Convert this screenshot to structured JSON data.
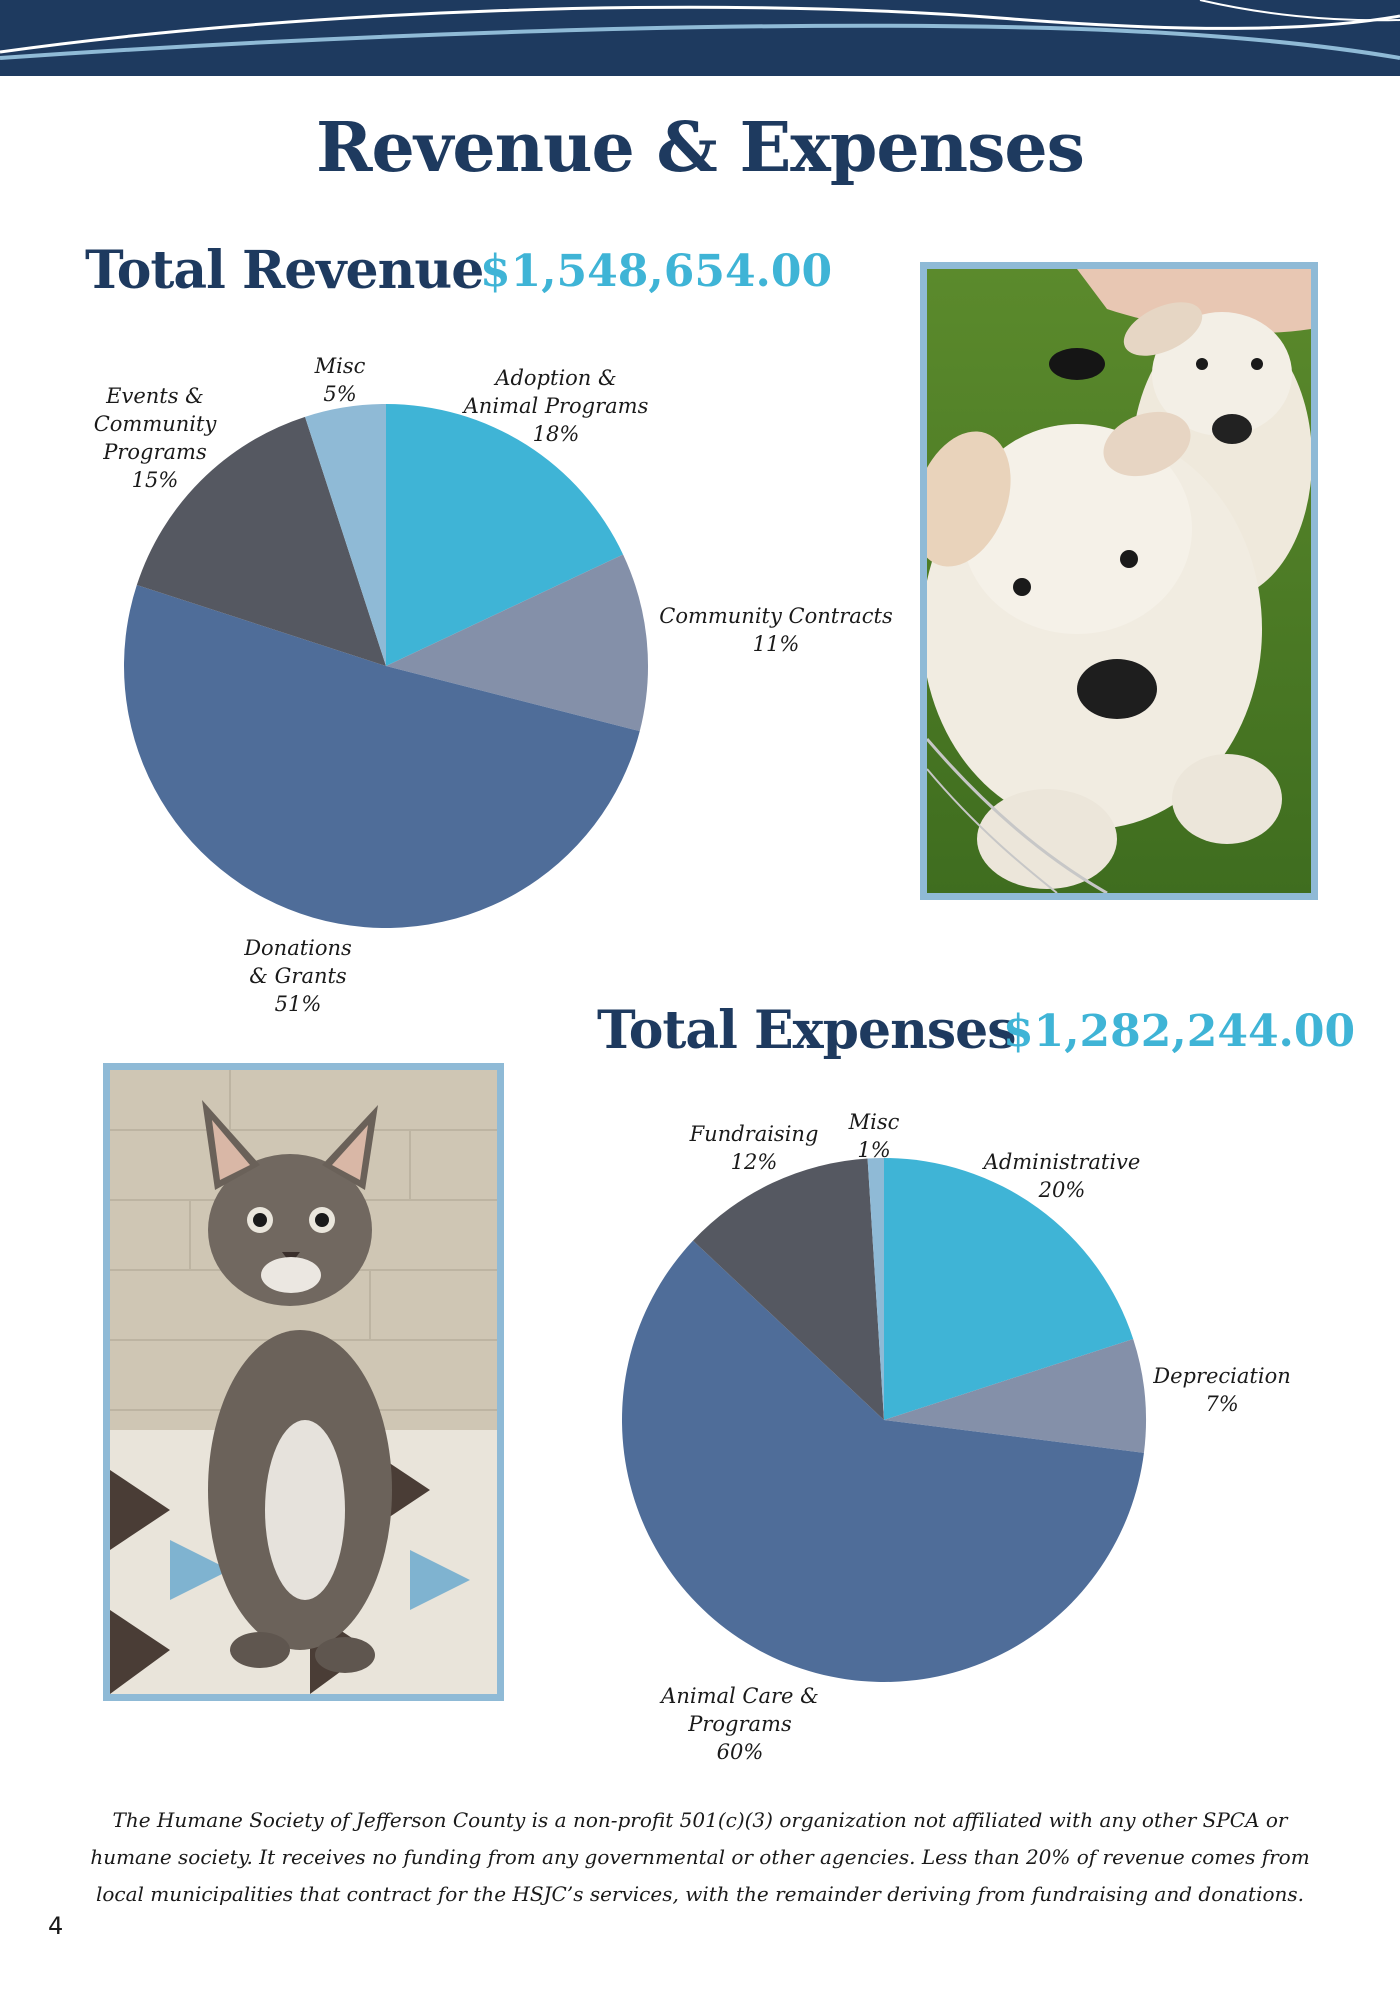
{
  "page_title": "Revenue & Expenses",
  "footer_note": "The Humane Society of Jefferson County is a non-profit 501(c)(3) organization not affiliated with any other SPCA or humane society. It receives no funding from any governmental or other agencies. Less than 20% of revenue comes from local municipalities that contract for the HSJC’s services, with the remainder deriving from fundraising and donations.",
  "page_number": "4",
  "colors": {
    "navy": "#1e3a5f",
    "accent": "#3fb4d6",
    "frame": "#8fbad6",
    "slice_cyan": "#3fb4d6",
    "slice_gray_blue": "#8490a9",
    "slice_steel": "#4f6d99",
    "slice_charcoal": "#555861",
    "slice_light_blue": "#8fbad6"
  },
  "images": [
    {
      "icon": "puppies-photo"
    },
    {
      "icon": "kitten-photo"
    }
  ],
  "chart_data": [
    {
      "type": "pie",
      "title": "Total Revenue",
      "total": "$1,548,654.00",
      "slices": [
        {
          "label_lines": [
            "Adoption &",
            "Animal Programs"
          ],
          "pct_label": "18%",
          "value": 18,
          "color": "#3fb4d6"
        },
        {
          "label_lines": [
            "Community Contracts"
          ],
          "pct_label": "11%",
          "value": 11,
          "color": "#8490a9"
        },
        {
          "label_lines": [
            "Donations",
            "& Grants"
          ],
          "pct_label": "51%",
          "value": 51,
          "color": "#4f6d99"
        },
        {
          "label_lines": [
            "Events &",
            "Community",
            "Programs"
          ],
          "pct_label": "15%",
          "value": 15,
          "color": "#555861"
        },
        {
          "label_lines": [
            "Misc"
          ],
          "pct_label": "5%",
          "value": 5,
          "color": "#8fbad6"
        }
      ]
    },
    {
      "type": "pie",
      "title": "Total Expenses",
      "total": "$1,282,244.00",
      "slices": [
        {
          "label_lines": [
            "Administrative"
          ],
          "pct_label": "20%",
          "value": 20,
          "color": "#3fb4d6"
        },
        {
          "label_lines": [
            "Depreciation"
          ],
          "pct_label": "7%",
          "value": 7,
          "color": "#8490a9"
        },
        {
          "label_lines": [
            "Animal Care &",
            "Programs"
          ],
          "pct_label": "60%",
          "value": 60,
          "color": "#4f6d99"
        },
        {
          "label_lines": [
            "Fundraising"
          ],
          "pct_label": "12%",
          "value": 12,
          "color": "#555861"
        },
        {
          "label_lines": [
            "Misc"
          ],
          "pct_label": "1%",
          "value": 1,
          "color": "#8fbad6"
        }
      ]
    }
  ]
}
